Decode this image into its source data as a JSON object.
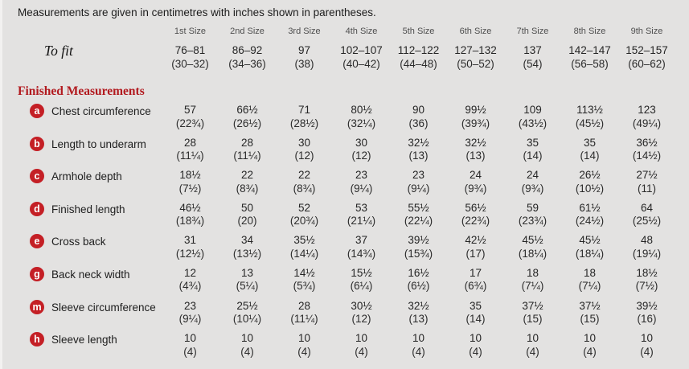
{
  "panel": {
    "note": "Measurements are given in centimetres with inches shown in parentheses."
  },
  "colors": {
    "background": "#e3e2e1",
    "badge_red": "#c41f25",
    "heading_red": "#b21a1f",
    "text": "#1d1d1d",
    "muted_header": "#4f4f4f"
  },
  "table": {
    "size_headers": [
      "1st Size",
      "2nd Size",
      "3rd Size",
      "4th Size",
      "5th Size",
      "6th Size",
      "7th Size",
      "8th Size",
      "9th Size"
    ],
    "to_fit": {
      "label": "To fit",
      "cm": [
        "76–81",
        "86–92",
        "97",
        "102–107",
        "112–122",
        "127–132",
        "137",
        "142–147",
        "152–157"
      ],
      "inches": [
        "(30–32)",
        "(34–36)",
        "(38)",
        "(40–42)",
        "(44–48)",
        "(50–52)",
        "(54)",
        "(56–58)",
        "(60–62)"
      ]
    },
    "section_heading": "Finished Measurements",
    "rows": [
      {
        "key": "a",
        "label": "Chest circumference",
        "cm": [
          "57",
          "66½",
          "71",
          "80½",
          "90",
          "99½",
          "109",
          "113½",
          "123"
        ],
        "inches": [
          "(22¾)",
          "(26½)",
          "(28½)",
          "(32¼)",
          "(36)",
          "(39¾)",
          "(43½)",
          "(45½)",
          "(49¼)"
        ]
      },
      {
        "key": "b",
        "label": "Length to underarm",
        "cm": [
          "28",
          "28",
          "30",
          "30",
          "32½",
          "32½",
          "35",
          "35",
          "36½"
        ],
        "inches": [
          "(11¼)",
          "(11¼)",
          "(12)",
          "(12)",
          "(13)",
          "(13)",
          "(14)",
          "(14)",
          "(14½)"
        ]
      },
      {
        "key": "c",
        "label": "Armhole depth",
        "cm": [
          "18½",
          "22",
          "22",
          "23",
          "23",
          "24",
          "24",
          "26½",
          "27½"
        ],
        "inches": [
          "(7½)",
          "(8¾)",
          "(8¾)",
          "(9¼)",
          "(9¼)",
          "(9¾)",
          "(9¾)",
          "(10½)",
          "(11)"
        ]
      },
      {
        "key": "d",
        "label": "Finished length",
        "cm": [
          "46½",
          "50",
          "52",
          "53",
          "55½",
          "56½",
          "59",
          "61½",
          "64"
        ],
        "inches": [
          "(18¾)",
          "(20)",
          "(20¾)",
          "(21¼)",
          "(22¼)",
          "(22¾)",
          "(23¾)",
          "(24½)",
          "(25½)"
        ]
      },
      {
        "key": "e",
        "label": "Cross back",
        "cm": [
          "31",
          "34",
          "35½",
          "37",
          "39½",
          "42½",
          "45½",
          "45½",
          "48"
        ],
        "inches": [
          "(12½)",
          "(13½)",
          "(14¼)",
          "(14¾)",
          "(15¾)",
          "(17)",
          "(18¼)",
          "(18¼)",
          "(19¼)"
        ]
      },
      {
        "key": "g",
        "label": "Back neck width",
        "cm": [
          "12",
          "13",
          "14½",
          "15½",
          "16½",
          "17",
          "18",
          "18",
          "18½"
        ],
        "inches": [
          "(4¾)",
          "(5¼)",
          "(5¾)",
          "(6¼)",
          "(6½)",
          "(6¾)",
          "(7¼)",
          "(7¼)",
          "(7½)"
        ]
      },
      {
        "key": "m",
        "label": "Sleeve circumference",
        "cm": [
          "23",
          "25½",
          "28",
          "30½",
          "32½",
          "35",
          "37½",
          "37½",
          "39½"
        ],
        "inches": [
          "(9¼)",
          "(10¼)",
          "(11¼)",
          "(12)",
          "(13)",
          "(14)",
          "(15)",
          "(15)",
          "(16)"
        ]
      },
      {
        "key": "h",
        "label": "Sleeve length",
        "cm": [
          "10",
          "10",
          "10",
          "10",
          "10",
          "10",
          "10",
          "10",
          "10"
        ],
        "inches": [
          "(4)",
          "(4)",
          "(4)",
          "(4)",
          "(4)",
          "(4)",
          "(4)",
          "(4)",
          "(4)"
        ]
      }
    ]
  }
}
